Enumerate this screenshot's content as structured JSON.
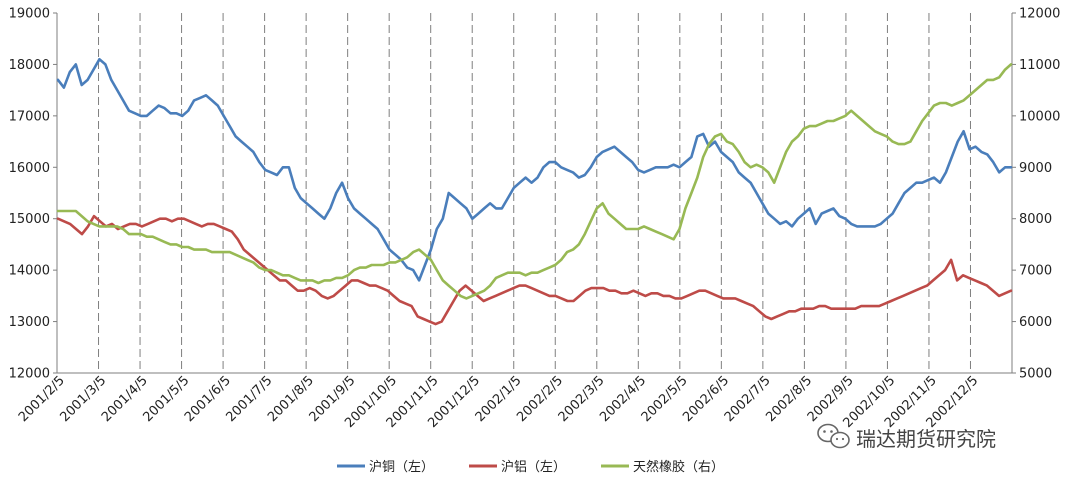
{
  "chart_data": {
    "type": "line",
    "title": "",
    "xlabel": "",
    "ylabel_left": "",
    "ylabel_right": "",
    "y_left": {
      "min": 12000,
      "max": 19000,
      "ticks": [
        "12000",
        "13000",
        "14000",
        "15000",
        "16000",
        "17000",
        "18000",
        "19000"
      ]
    },
    "y_right": {
      "min": 5000,
      "max": 12000,
      "ticks": [
        "5000",
        "6000",
        "7000",
        "8000",
        "9000",
        "10000",
        "11000",
        "12000"
      ]
    },
    "x_ticks": [
      "2001/2/5",
      "2001/3/5",
      "2001/4/5",
      "2001/5/5",
      "2001/6/5",
      "2001/7/5",
      "2001/8/5",
      "2001/9/5",
      "2001/10/5",
      "2001/11/5",
      "2001/12/5",
      "2002/1/5",
      "2002/2/5",
      "2002/3/5",
      "2002/4/5",
      "2002/5/5",
      "2002/6/5",
      "2002/7/5",
      "2002/8/5",
      "2002/9/5",
      "2002/10/5",
      "2002/11/5",
      "2002/12/5"
    ],
    "grid": "vertical dashed lines at each x tick",
    "legend_position": "bottom",
    "colors": {
      "copper": "#4a7ebb",
      "aluminum": "#be4b48",
      "rubber": "#98b954"
    },
    "series": [
      {
        "name": "沪铜（左）",
        "axis": "left",
        "values": [
          17700,
          17550,
          17850,
          18000,
          17600,
          17700,
          17900,
          18100,
          18000,
          17700,
          17500,
          17300,
          17100,
          17050,
          17000,
          17000,
          17100,
          17200,
          17150,
          17050,
          17050,
          17000,
          17100,
          17300,
          17350,
          17400,
          17300,
          17200,
          17000,
          16800,
          16600,
          16500,
          16400,
          16300,
          16100,
          15950,
          15900,
          15850,
          16000,
          16000,
          15600,
          15400,
          15300,
          15200,
          15100,
          15000,
          15200,
          15500,
          15700,
          15400,
          15200,
          15100,
          15000,
          14900,
          14800,
          14600,
          14400,
          14300,
          14200,
          14050,
          14000,
          13800,
          14100,
          14400,
          14800,
          15000,
          15500,
          15400,
          15300,
          15200,
          15000,
          15100,
          15200,
          15300,
          15200,
          15200,
          15400,
          15600,
          15700,
          15800,
          15700,
          15800,
          16000,
          16100,
          16100,
          16000,
          15950,
          15900,
          15800,
          15850,
          16000,
          16200,
          16300,
          16350,
          16400,
          16300,
          16200,
          16100,
          15950,
          15900,
          15950,
          16000,
          16000,
          16000,
          16050,
          16000,
          16100,
          16200,
          16600,
          16650,
          16400,
          16500,
          16300,
          16200,
          16100,
          15900,
          15800,
          15700,
          15500,
          15300,
          15100,
          15000,
          14900,
          14950,
          14850,
          15000,
          15100,
          15200,
          14900,
          15100,
          15150,
          15200,
          15050,
          15000,
          14900,
          14850,
          14850,
          14850,
          14850,
          14900,
          15000,
          15100,
          15300,
          15500,
          15600,
          15700,
          15700,
          15750,
          15800,
          15700,
          15900,
          16200,
          16500,
          16700,
          16350,
          16400,
          16300,
          16250,
          16100,
          15900,
          16000,
          16000
        ]
      },
      {
        "name": "沪铝（左）",
        "axis": "left",
        "values": [
          15000,
          14950,
          14900,
          14800,
          14700,
          14850,
          15050,
          14950,
          14850,
          14900,
          14800,
          14850,
          14900,
          14900,
          14850,
          14900,
          14950,
          15000,
          15000,
          14950,
          15000,
          15000,
          14950,
          14900,
          14850,
          14900,
          14900,
          14850,
          14800,
          14750,
          14600,
          14400,
          14300,
          14200,
          14100,
          14000,
          13900,
          13800,
          13800,
          13700,
          13600,
          13600,
          13650,
          13600,
          13500,
          13450,
          13500,
          13600,
          13700,
          13800,
          13800,
          13750,
          13700,
          13700,
          13650,
          13600,
          13500,
          13400,
          13350,
          13300,
          13100,
          13050,
          13000,
          12950,
          13000,
          13200,
          13400,
          13600,
          13700,
          13600,
          13500,
          13400,
          13450,
          13500,
          13550,
          13600,
          13650,
          13700,
          13700,
          13650,
          13600,
          13550,
          13500,
          13500,
          13450,
          13400,
          13400,
          13500,
          13600,
          13650,
          13650,
          13650,
          13600,
          13600,
          13550,
          13550,
          13600,
          13550,
          13500,
          13550,
          13550,
          13500,
          13500,
          13450,
          13450,
          13500,
          13550,
          13600,
          13600,
          13550,
          13500,
          13450,
          13450,
          13450,
          13400,
          13350,
          13300,
          13200,
          13100,
          13050,
          13100,
          13150,
          13200,
          13200,
          13250,
          13250,
          13250,
          13300,
          13300,
          13250,
          13250,
          13250,
          13250,
          13250,
          13300,
          13300,
          13300,
          13300,
          13350,
          13400,
          13450,
          13500,
          13550,
          13600,
          13650,
          13700,
          13800,
          13900,
          14000,
          14200,
          13800,
          13900,
          13850,
          13800,
          13750,
          13700,
          13600,
          13500,
          13550,
          13600
        ]
      },
      {
        "name": "天然橡胶（右）",
        "axis": "right",
        "values": [
          8150,
          8150,
          8150,
          8150,
          8050,
          7950,
          7900,
          7850,
          7850,
          7850,
          7850,
          7800,
          7700,
          7700,
          7700,
          7650,
          7650,
          7600,
          7550,
          7500,
          7500,
          7450,
          7450,
          7400,
          7400,
          7400,
          7350,
          7350,
          7350,
          7350,
          7300,
          7250,
          7200,
          7150,
          7050,
          7000,
          7000,
          6950,
          6900,
          6900,
          6850,
          6800,
          6800,
          6800,
          6750,
          6800,
          6800,
          6850,
          6850,
          6900,
          7000,
          7050,
          7050,
          7100,
          7100,
          7100,
          7150,
          7150,
          7200,
          7250,
          7350,
          7400,
          7300,
          7200,
          7000,
          6800,
          6700,
          6600,
          6500,
          6450,
          6500,
          6550,
          6600,
          6700,
          6850,
          6900,
          6950,
          6950,
          6950,
          6900,
          6950,
          6950,
          7000,
          7050,
          7100,
          7200,
          7350,
          7400,
          7500,
          7700,
          7950,
          8200,
          8300,
          8100,
          8000,
          7900,
          7800,
          7800,
          7800,
          7850,
          7800,
          7750,
          7700,
          7650,
          7600,
          7800,
          8200,
          8500,
          8800,
          9200,
          9450,
          9600,
          9650,
          9500,
          9450,
          9300,
          9100,
          9000,
          9050,
          9000,
          8900,
          8700,
          9000,
          9300,
          9500,
          9600,
          9750,
          9800,
          9800,
          9850,
          9900,
          9900,
          9950,
          10000,
          10100,
          10000,
          9900,
          9800,
          9700,
          9650,
          9600,
          9500,
          9450,
          9450,
          9500,
          9700,
          9900,
          10050,
          10200,
          10250,
          10250,
          10200,
          10250,
          10300,
          10400,
          10500,
          10600,
          10700,
          10700,
          10750,
          10900,
          11000
        ]
      }
    ]
  },
  "legend": {
    "copper_label": "沪铜（左）",
    "aluminum_label": "沪铝（左）",
    "rubber_label": "天然橡胶（右）"
  },
  "watermark": {
    "text": "瑞达期货研究院",
    "icon": "wechat-icon"
  }
}
